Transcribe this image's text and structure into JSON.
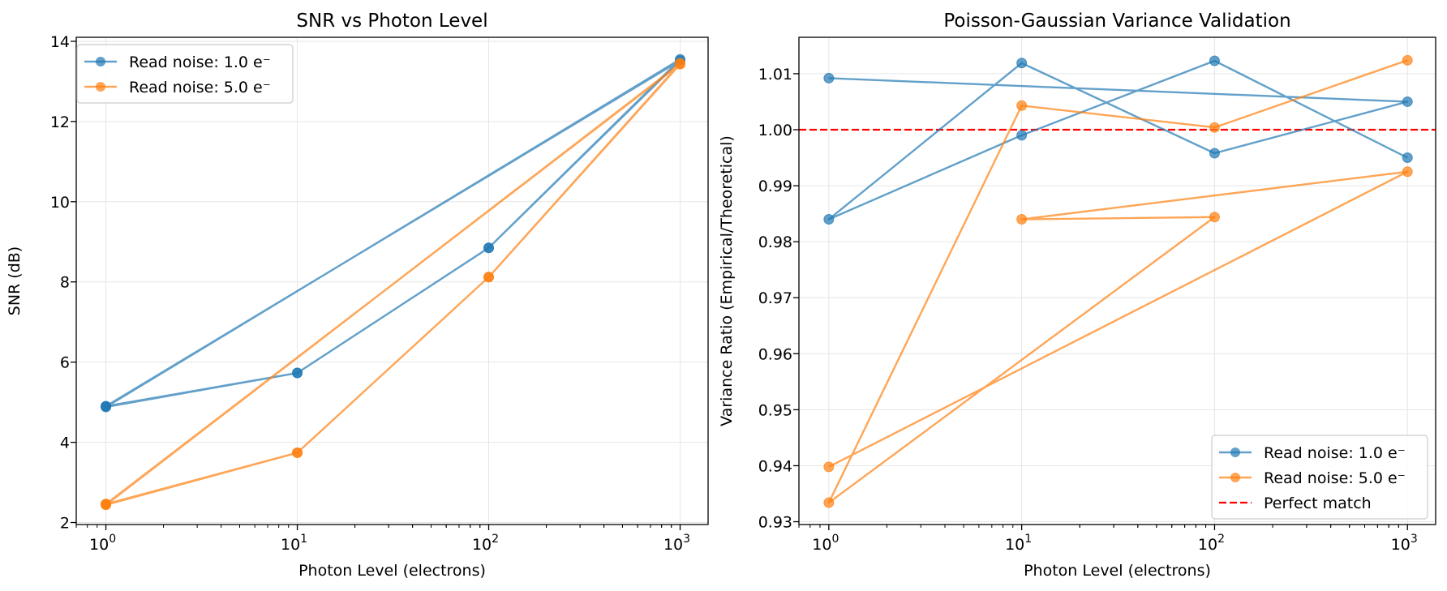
{
  "chart_data": [
    {
      "type": "line",
      "title": "SNR vs Photon Level",
      "xlabel": "Photon Level (electrons)",
      "ylabel": "SNR (dB)",
      "xscale": "log",
      "xlim": [
        0.7,
        1400
      ],
      "ylim": [
        1.95,
        14.1
      ],
      "xticks": [
        {
          "value": 1,
          "base": "10",
          "exp": "0"
        },
        {
          "value": 10,
          "base": "10",
          "exp": "1"
        },
        {
          "value": 100,
          "base": "10",
          "exp": "2"
        },
        {
          "value": 1000,
          "base": "10",
          "exp": "3"
        }
      ],
      "yticks": [
        {
          "value": 2,
          "label": "2"
        },
        {
          "value": 4,
          "label": "4"
        },
        {
          "value": 6,
          "label": "6"
        },
        {
          "value": 8,
          "label": "8"
        },
        {
          "value": 10,
          "label": "10"
        },
        {
          "value": 12,
          "label": "12"
        },
        {
          "value": 14,
          "label": "14"
        }
      ],
      "grid": true,
      "legend_position": "upper-left",
      "series": [
        {
          "name": "Read noise: 1.0 e⁻",
          "color": "#1f77b4",
          "x": [
            1,
            10,
            100,
            1000,
            1,
            10,
            100,
            1000,
            1
          ],
          "y": [
            4.9,
            5.73,
            8.85,
            13.55,
            4.88,
            5.73,
            8.85,
            13.52,
            4.9
          ]
        },
        {
          "name": "Read noise: 5.0 e⁻",
          "color": "#ff7f0e",
          "x": [
            1,
            10,
            100,
            1000,
            1,
            10,
            100,
            1000,
            1
          ],
          "y": [
            2.46,
            3.74,
            8.12,
            13.45,
            2.44,
            3.74,
            8.12,
            13.43,
            2.46
          ]
        }
      ]
    },
    {
      "type": "line",
      "title": "Poisson-Gaussian Variance Validation",
      "xlabel": "Photon Level (electrons)",
      "ylabel": "Variance Ratio (Empirical/Theoretical)",
      "xscale": "log",
      "xlim": [
        0.7,
        1400
      ],
      "ylim": [
        0.9295,
        1.0165
      ],
      "xticks": [
        {
          "value": 1,
          "base": "10",
          "exp": "0"
        },
        {
          "value": 10,
          "base": "10",
          "exp": "1"
        },
        {
          "value": 100,
          "base": "10",
          "exp": "2"
        },
        {
          "value": 1000,
          "base": "10",
          "exp": "3"
        }
      ],
      "yticks": [
        {
          "value": 0.93,
          "label": "0.93"
        },
        {
          "value": 0.94,
          "label": "0.94"
        },
        {
          "value": 0.95,
          "label": "0.95"
        },
        {
          "value": 0.96,
          "label": "0.96"
        },
        {
          "value": 0.97,
          "label": "0.97"
        },
        {
          "value": 0.98,
          "label": "0.98"
        },
        {
          "value": 0.99,
          "label": "0.99"
        },
        {
          "value": 1.0,
          "label": "1.00"
        },
        {
          "value": 1.01,
          "label": "1.01"
        }
      ],
      "grid": true,
      "legend_position": "lower-right",
      "reference_line": {
        "name": "Perfect match",
        "y": 1.0,
        "color": "#ff0000",
        "style": "dashed"
      },
      "series": [
        {
          "name": "Read noise: 1.0 e⁻",
          "color": "#1f77b4",
          "x": [
            1,
            1000,
            100,
            10,
            1,
            10,
            100,
            1000
          ],
          "y": [
            1.0092,
            1.005,
            0.9958,
            1.0119,
            0.984,
            0.999,
            1.0123,
            0.995
          ]
        },
        {
          "name": "Read noise: 5.0 e⁻",
          "color": "#ff7f0e",
          "x": [
            1,
            1000,
            10,
            100,
            1,
            10,
            100,
            1000
          ],
          "y": [
            0.9398,
            0.9925,
            0.984,
            0.9844,
            0.9334,
            1.0043,
            1.0004,
            1.0124
          ]
        }
      ]
    }
  ]
}
